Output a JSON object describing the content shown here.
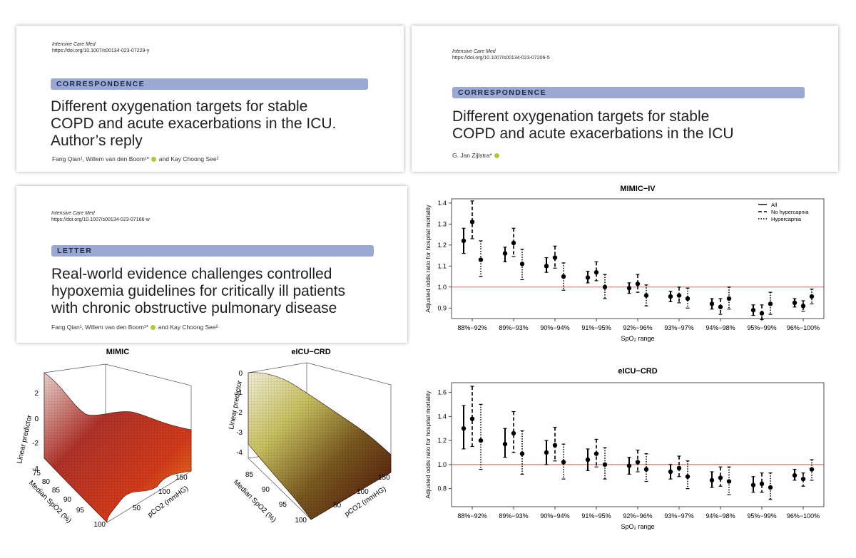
{
  "cards": [
    {
      "journal": "Intensive Care Med",
      "doi": "https://doi.org/10.1007/s00134-023-07229-y",
      "section": "CORRESPONDENCE",
      "title_lines": [
        "Different oxygenation targets for stable",
        "COPD and acute exacerbations in the ICU.",
        "Author’s reply"
      ],
      "authors": "Fang Qian¹, Willem van den Boom¹* and Kay Choong See²"
    },
    {
      "journal": "Intensive Care Med",
      "doi": "https://doi.org/10.1007/s00134-023-07206-5",
      "section": "CORRESPONDENCE",
      "title_lines": [
        "Different oxygenation targets for stable",
        "COPD and acute exacerbations in the ICU"
      ],
      "authors": "G. Jan Zijlstra*"
    },
    {
      "journal": "Intensive Care Med",
      "doi": "https://doi.org/10.1007/s00134-023-07166-w",
      "section": "LETTER",
      "title_lines": [
        "Real-world evidence challenges controlled",
        "hypoxemia guidelines for critically ill patients",
        "with chronic obstructive pulmonary disease"
      ],
      "authors": "Fang Qian¹, Willem van den Boom¹* and Kay Choong See²"
    }
  ],
  "surfaces": [
    {
      "title": "MIMIC",
      "zlabel": "Linear predictor",
      "xlabel": "pCO2 (mmHG)",
      "ylabel": "Median SpO2 (%)",
      "zticks": [
        "2",
        "0",
        "-2",
        "-4"
      ],
      "xticks": [
        "50",
        "100",
        "150"
      ],
      "yticks": [
        "75",
        "80",
        "85",
        "90",
        "95",
        "100"
      ]
    },
    {
      "title": "eICU−CRD",
      "zlabel": "Linear predictor",
      "xlabel": "pCO2 (mmHG)",
      "ylabel": "Median SpO2 (%)",
      "zticks": [
        "0",
        "-1",
        "-2",
        "-3",
        "-4"
      ],
      "xticks": [
        "50",
        "100",
        "150"
      ],
      "yticks": [
        "85",
        "90",
        "95",
        "100"
      ]
    }
  ],
  "chart_data": [
    {
      "type": "scatter",
      "title": "MIMIC−IV",
      "xlabel": "SpO₂ range",
      "ylabel": "Adjusted odds ratio for hospital mortality",
      "categories": [
        "88%−92%",
        "89%−93%",
        "90%−94%",
        "91%−95%",
        "92%−96%",
        "93%−97%",
        "94%−98%",
        "95%−99%",
        "96%−100%"
      ],
      "ylim": [
        0.85,
        1.42
      ],
      "yticks": [
        "0.9",
        "1.0",
        "1.1",
        "1.2",
        "1.3",
        "1.4"
      ],
      "reference_line": 1.0,
      "legend": {
        "placement": "top-right",
        "entries": [
          "All",
          "No hypercapnia",
          "Hypercapnia"
        ]
      },
      "series": [
        {
          "name": "All",
          "values": [
            1.22,
            1.16,
            1.1,
            1.045,
            0.995,
            0.955,
            0.92,
            0.89,
            0.925
          ],
          "lower": [
            1.16,
            1.12,
            1.07,
            1.02,
            0.97,
            0.93,
            0.895,
            0.865,
            0.905
          ],
          "upper": [
            1.28,
            1.19,
            1.14,
            1.075,
            1.02,
            0.98,
            0.945,
            0.915,
            0.945
          ]
        },
        {
          "name": "No hypercapnia",
          "values": [
            1.31,
            1.21,
            1.14,
            1.07,
            1.015,
            0.96,
            0.905,
            0.875,
            0.91
          ],
          "lower": [
            1.23,
            1.145,
            1.09,
            1.03,
            0.975,
            0.925,
            0.87,
            0.845,
            0.885
          ],
          "upper": [
            1.41,
            1.28,
            1.195,
            1.12,
            1.06,
            1.0,
            0.945,
            0.915,
            0.935
          ]
        },
        {
          "name": "Hypercapnia",
          "values": [
            1.13,
            1.11,
            1.05,
            1.0,
            0.96,
            0.945,
            0.945,
            0.92,
            0.955
          ],
          "lower": [
            1.05,
            1.035,
            0.985,
            0.945,
            0.91,
            0.9,
            0.895,
            0.87,
            0.92
          ],
          "upper": [
            1.22,
            1.18,
            1.115,
            1.06,
            1.01,
            0.995,
            1.0,
            0.975,
            0.99
          ]
        }
      ]
    },
    {
      "type": "scatter",
      "title": "eICU−CRD",
      "xlabel": "SpO₂ range",
      "ylabel": "Adjusted odds ratio for hospital mortality",
      "categories": [
        "88%−92%",
        "89%−93%",
        "90%−94%",
        "91%−95%",
        "92%−96%",
        "93%−97%",
        "94%−98%",
        "95%−99%",
        "96%−100%"
      ],
      "ylim": [
        0.65,
        1.68
      ],
      "yticks": [
        "0.8",
        "1.0",
        "1.2",
        "1.4",
        "1.6"
      ],
      "reference_line": 1.0,
      "series": [
        {
          "name": "All",
          "values": [
            1.3,
            1.17,
            1.1,
            1.04,
            0.99,
            0.94,
            0.87,
            0.83,
            0.91
          ],
          "lower": [
            1.13,
            1.06,
            1.0,
            0.95,
            0.92,
            0.88,
            0.81,
            0.77,
            0.87
          ],
          "upper": [
            1.49,
            1.3,
            1.2,
            1.13,
            1.06,
            1.0,
            0.94,
            0.9,
            0.96
          ]
        },
        {
          "name": "No hypercapnia",
          "values": [
            1.38,
            1.26,
            1.16,
            1.09,
            1.02,
            0.97,
            0.89,
            0.84,
            0.88
          ],
          "lower": [
            1.15,
            1.1,
            1.03,
            0.98,
            0.94,
            0.9,
            0.82,
            0.77,
            0.82
          ],
          "upper": [
            1.65,
            1.44,
            1.31,
            1.21,
            1.12,
            1.07,
            0.98,
            0.93,
            0.93
          ]
        },
        {
          "name": "Hypercapnia",
          "values": [
            1.2,
            1.09,
            1.02,
            1.0,
            0.96,
            0.9,
            0.86,
            0.81,
            0.96
          ],
          "lower": [
            0.96,
            0.92,
            0.88,
            0.88,
            0.86,
            0.8,
            0.75,
            0.71,
            0.87
          ],
          "upper": [
            1.5,
            1.28,
            1.17,
            1.14,
            1.09,
            1.03,
            0.98,
            0.93,
            1.04
          ]
        }
      ]
    }
  ]
}
